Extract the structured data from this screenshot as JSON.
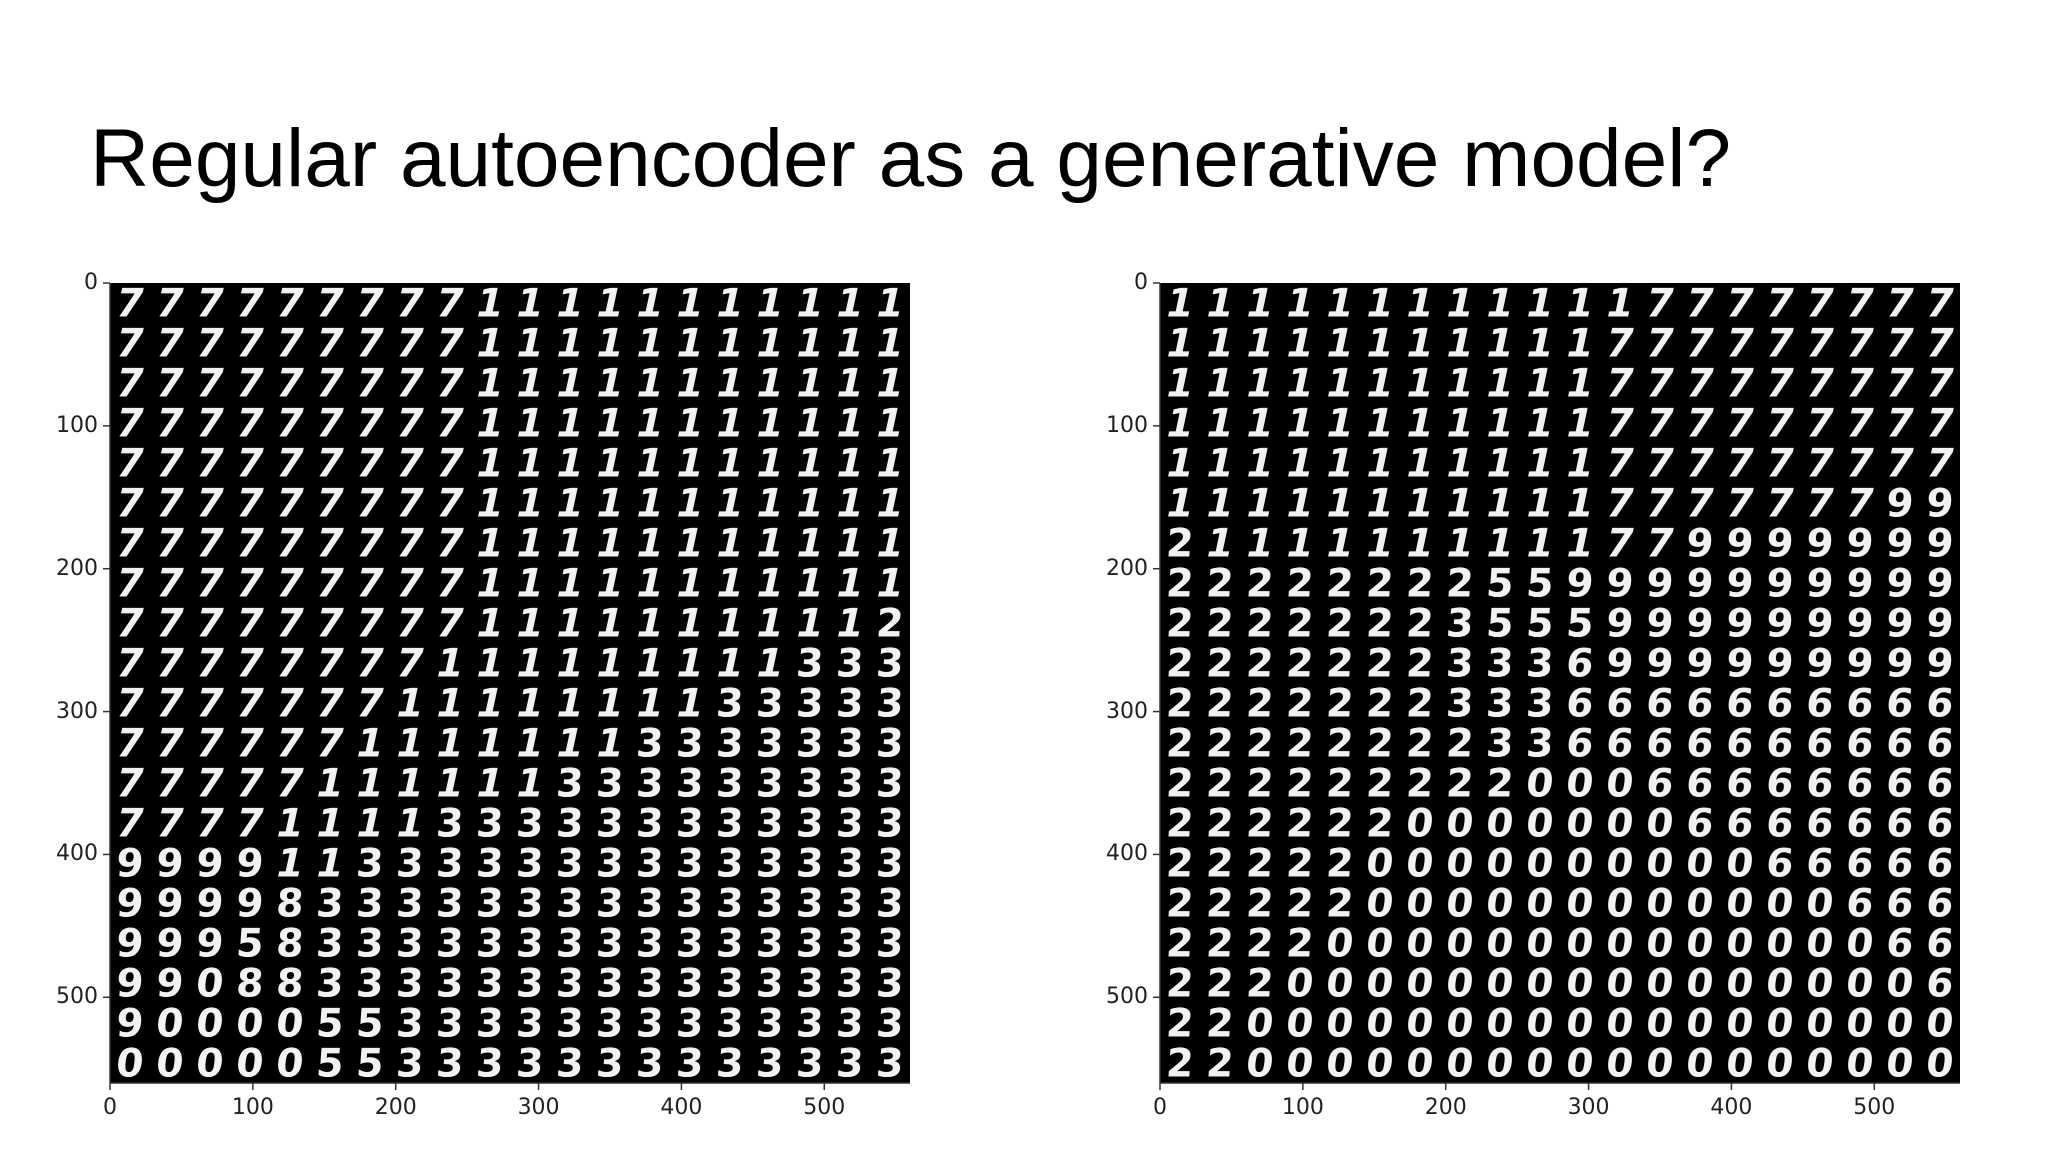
{
  "slide": {
    "title": "Regular autoencoder as a generative model?"
  },
  "colors": {
    "background": "#ffffff",
    "image_background": "#000000",
    "digit_stroke": "#f2f2f2",
    "axis": "#333333"
  },
  "plots": [
    {
      "name": "left-latent-grid",
      "x_ticks": [
        "0",
        "100",
        "200",
        "300",
        "400",
        "500"
      ],
      "y_ticks": [
        "0",
        "100",
        "200",
        "300",
        "400",
        "500"
      ],
      "x_range": [
        0,
        560
      ],
      "y_range": [
        0,
        560
      ],
      "grid_rows": 20,
      "grid_cols": 20,
      "digit_rows": [
        "77777777711111111111",
        "77777777711111111111",
        "77777777711111111111",
        "77777777711111111111",
        "77777777711111111111",
        "77777777711111111111",
        "77777777711111111111",
        "77777777711111111111",
        "77777777711111111112",
        "77777777111111111333",
        "77777771111111133333",
        "77777711111113333333",
        "77777111111333333333",
        "77771111333333333333",
        "99991133333333333333",
        "99998333333333333333",
        "99958333333333333333",
        "99088333333333333333",
        "90000553333333333333",
        "00000553333333333333"
      ]
    },
    {
      "name": "right-latent-grid",
      "x_ticks": [
        "0",
        "100",
        "200",
        "300",
        "400",
        "500"
      ],
      "y_ticks": [
        "0",
        "100",
        "200",
        "300",
        "400",
        "500"
      ],
      "x_range": [
        0,
        560
      ],
      "y_range": [
        0,
        560
      ],
      "grid_rows": 20,
      "grid_cols": 20,
      "digit_rows": [
        "11111111111177777777",
        "11111111111777777777",
        "11111111111777777777",
        "11111111111777777777",
        "11111111111777777777",
        "11111111111777777799",
        "21111111111779999999",
        "22222222559999999999",
        "22222223555999999999",
        "22222223336999999999",
        "22222223336666666666",
        "22222222336666666666",
        "22222222200066666666",
        "22222200000006666666",
        "22222000000000066666",
        "22222000000000000666",
        "22220000000000000066",
        "22200000000000000006",
        "22000000000000000000",
        "22000000000000000000"
      ]
    }
  ]
}
